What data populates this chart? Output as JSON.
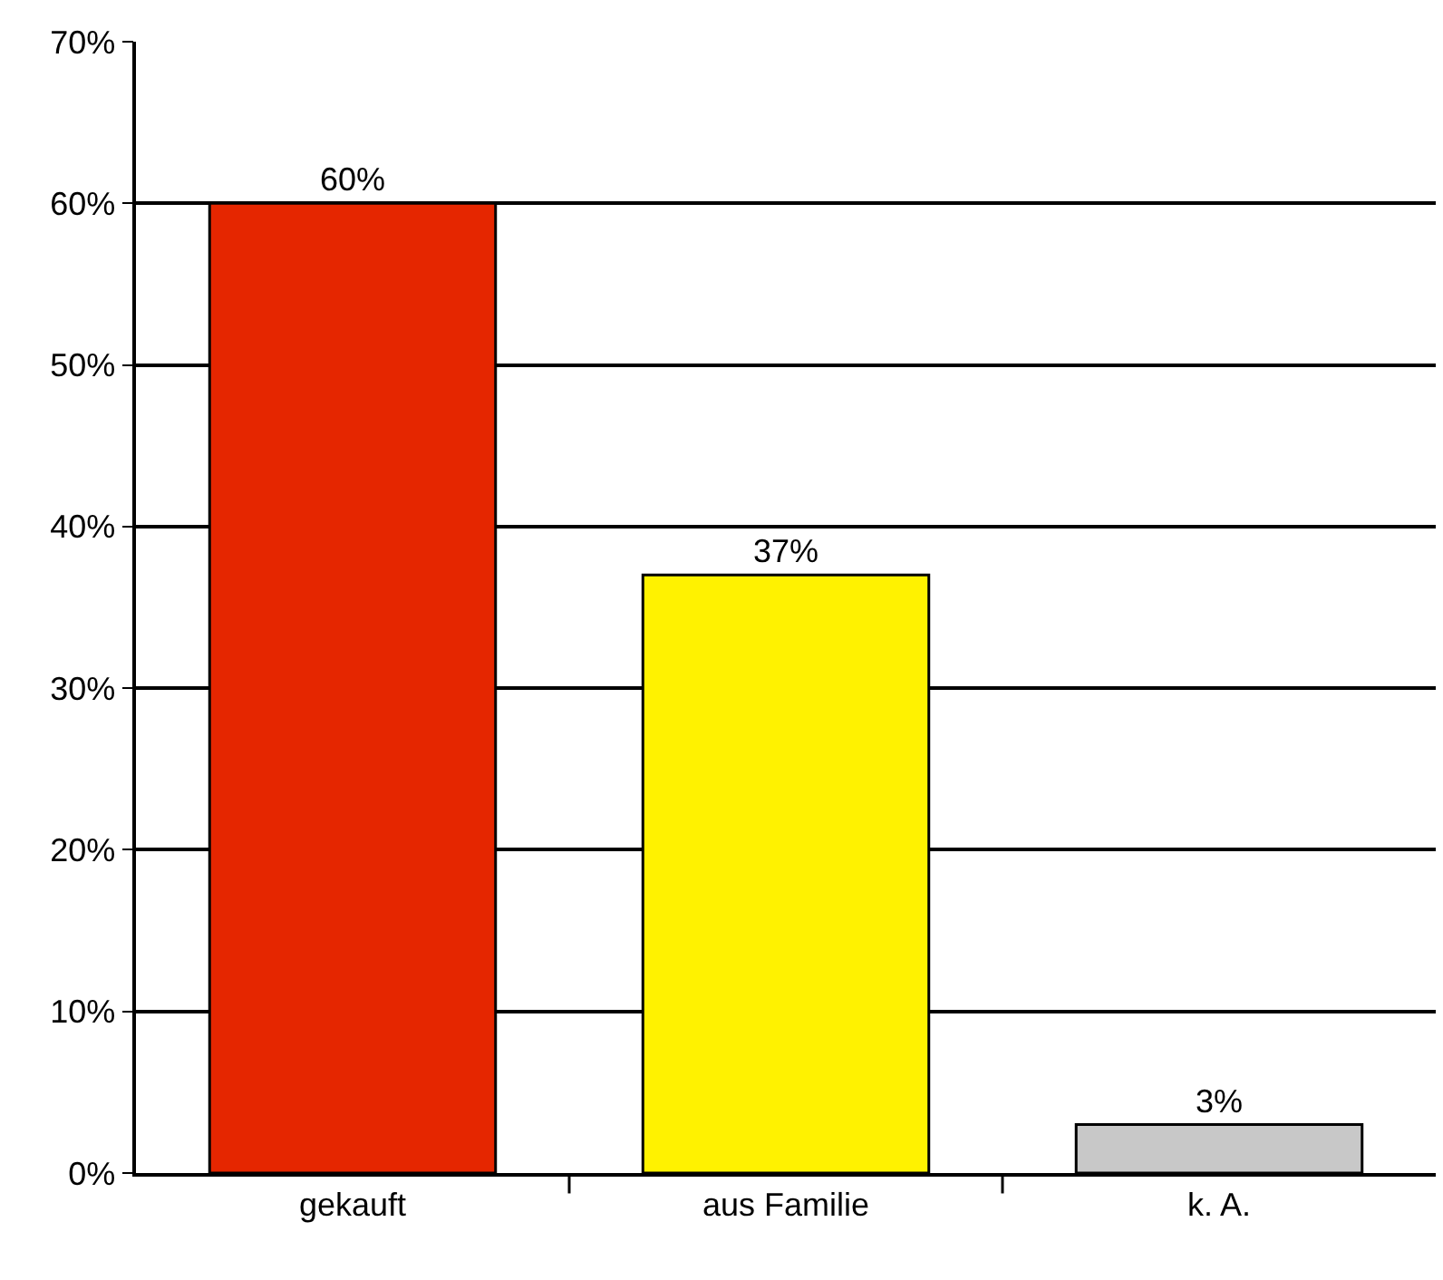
{
  "chart_data": {
    "type": "bar",
    "categories": [
      "gekauft",
      "aus Familie",
      "k. A."
    ],
    "values": [
      60,
      37,
      3
    ],
    "colors": [
      "#e52600",
      "#fff200",
      "#c8c8c8"
    ],
    "ylim": [
      0,
      70
    ],
    "yticks": [
      {
        "value": 0,
        "label": "0%"
      },
      {
        "value": 10,
        "label": "10%"
      },
      {
        "value": 20,
        "label": "20%"
      },
      {
        "value": 30,
        "label": "30%"
      },
      {
        "value": 40,
        "label": "40%"
      },
      {
        "value": 50,
        "label": "50%"
      },
      {
        "value": 60,
        "label": "60%"
      },
      {
        "value": 70,
        "label": "70%"
      }
    ],
    "value_labels": [
      "60%",
      "37%",
      "3%"
    ],
    "grid": "y",
    "legend": false
  }
}
